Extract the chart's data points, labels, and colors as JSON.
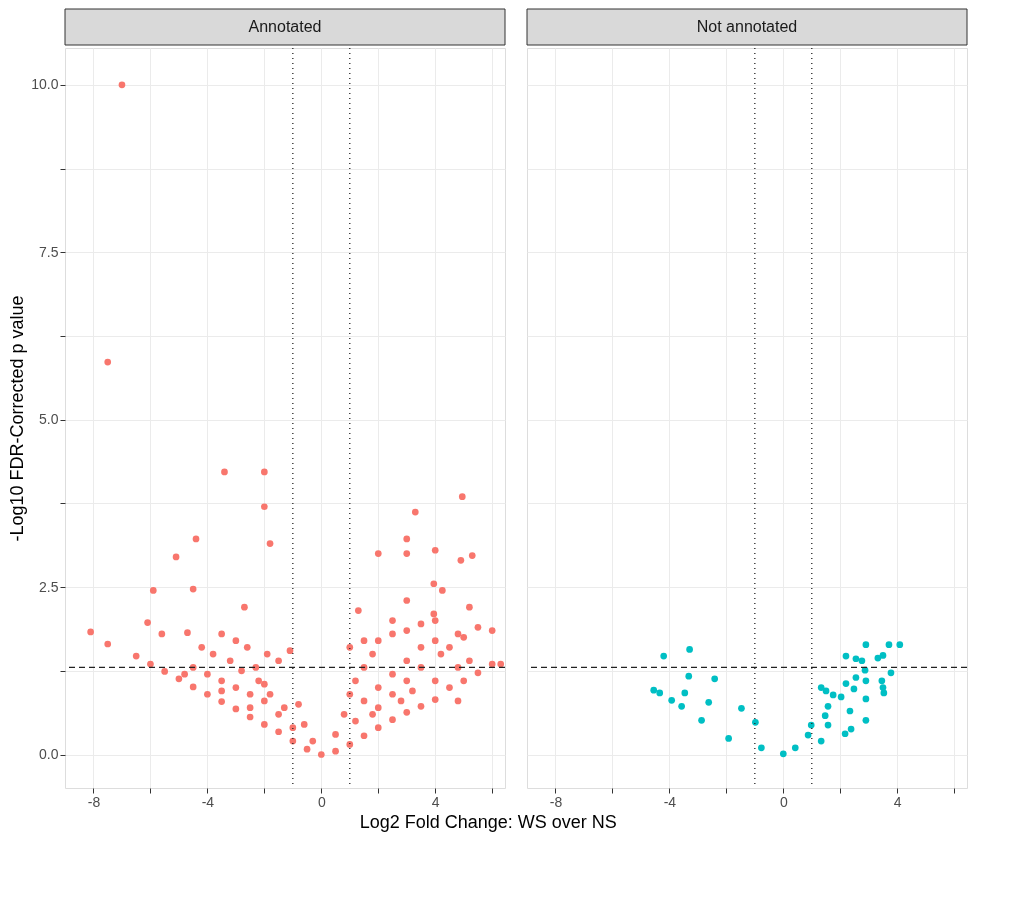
{
  "chart_data": [
    {
      "type": "scatter",
      "title": "Annotated",
      "xlabel": "Log2 Fold Change: WS over NS",
      "ylabel": "-Log10 FDR-Corrected p value",
      "marker": "circle",
      "grid": true,
      "xlim": [
        -9.0,
        6.45
      ],
      "ylim": [
        -0.5,
        10.55
      ],
      "xticks": [
        -8,
        {
          "value": -6,
          "label": null
        },
        -4,
        {
          "value": -2,
          "label": null
        },
        0,
        {
          "value": 2,
          "label": null
        },
        4,
        {
          "value": 6,
          "label": null
        }
      ],
      "yticks": [
        {
          "value": 0,
          "label": "0.0"
        },
        {
          "value": 1.25,
          "label": null
        },
        2.5,
        {
          "value": 3.75,
          "label": null
        },
        {
          "value": 5,
          "label": "5.0"
        },
        {
          "value": 6.25,
          "label": null
        },
        7.5,
        {
          "value": 8.75,
          "label": null
        },
        {
          "value": 10,
          "label": "10.0"
        }
      ],
      "ref_lines": [
        {
          "axis": "y",
          "value": 1.3,
          "line_style": "dashed"
        },
        {
          "axis": "x",
          "value": -1,
          "line_style": "dotted"
        },
        {
          "axis": "x",
          "value": 1,
          "line_style": "dotted"
        }
      ],
      "series": [
        {
          "color": "#f8766d",
          "x": [
            -7.0,
            -7.5,
            -3.4,
            -2.0,
            -2.0,
            -1.8,
            -4.4,
            -5.1,
            -4.5,
            -5.9,
            -2.7,
            4.95,
            3.3,
            3.0,
            3.0,
            4.0,
            2.0,
            5.3,
            4.9,
            3.95,
            4.25,
            3.95,
            -8.1,
            -7.5,
            -6.1,
            -5.6,
            -4.7,
            6.0,
            6.3,
            5.2,
            1.3,
            -6.5,
            -6.0,
            -5.5,
            -5.0,
            -4.5,
            -4.0,
            -3.5,
            -3.0,
            -2.5,
            -2.0,
            -1.5,
            -1.0,
            -0.5,
            0.0,
            -4.5,
            -4.0,
            -3.5,
            -3.0,
            -2.5,
            -2.0,
            -1.5,
            -1.0,
            -3.8,
            -3.2,
            -2.8,
            -2.2,
            -1.8,
            -1.3,
            -3.5,
            -4.2,
            -2.6,
            -1.5,
            -1.1,
            -2.3,
            -4.8,
            -0.8,
            -0.6,
            -0.3,
            -1.9,
            -3.0,
            -2.0,
            -2.5,
            -3.5,
            0.5,
            1.0,
            1.5,
            2.0,
            2.5,
            3.0,
            3.5,
            4.0,
            4.5,
            5.0,
            5.5,
            6.0,
            0.5,
            0.8,
            1.0,
            1.2,
            1.5,
            1.8,
            2.0,
            2.5,
            3.0,
            3.5,
            4.0,
            1.5,
            2.0,
            2.5,
            3.0,
            3.5,
            4.0,
            2.0,
            2.5,
            3.0,
            3.5,
            4.2,
            1.2,
            1.8,
            2.8,
            3.2,
            4.5,
            5.0,
            5.5,
            4.8,
            5.2,
            1.0,
            1.5,
            2.5,
            3.0,
            4.8,
            4.0,
            4.8
          ],
          "values": [
            10.0,
            5.86,
            4.22,
            4.22,
            3.7,
            3.15,
            3.22,
            2.95,
            2.47,
            2.45,
            2.2,
            3.85,
            3.62,
            3.22,
            3.0,
            3.05,
            3.0,
            2.97,
            2.9,
            2.55,
            2.45,
            2.1,
            1.83,
            1.65,
            1.97,
            1.8,
            1.82,
            1.85,
            1.35,
            2.2,
            2.15,
            1.47,
            1.35,
            1.24,
            1.13,
            1.01,
            0.9,
            0.79,
            0.68,
            0.56,
            0.45,
            0.34,
            0.2,
            0.08,
            0.0,
            1.3,
            1.2,
            1.1,
            1.0,
            0.9,
            0.8,
            0.6,
            0.4,
            1.5,
            1.4,
            1.25,
            1.1,
            0.9,
            0.7,
            1.8,
            1.6,
            1.6,
            1.4,
            1.55,
            1.3,
            1.2,
            0.75,
            0.45,
            0.2,
            1.5,
            1.7,
            1.05,
            0.7,
            0.95,
            0.05,
            0.15,
            0.28,
            0.4,
            0.52,
            0.63,
            0.72,
            0.82,
            1.0,
            1.1,
            1.22,
            1.35,
            0.3,
            0.6,
            0.9,
            1.1,
            1.3,
            1.5,
            1.7,
            1.8,
            1.85,
            1.95,
            2.0,
            0.8,
            1.0,
            1.2,
            1.4,
            1.6,
            1.7,
            0.7,
            0.9,
            1.1,
            1.3,
            1.5,
            0.5,
            0.6,
            0.8,
            0.95,
            1.6,
            1.75,
            1.9,
            1.3,
            1.4,
            1.6,
            1.7,
            2.0,
            2.3,
            1.8,
            1.1,
            0.8
          ]
        }
      ]
    },
    {
      "type": "scatter",
      "title": "Not annotated",
      "marker": "circle",
      "grid": true,
      "tick_labels": "x",
      "xlim": [
        -9.0,
        6.45
      ],
      "ylim": [
        -0.5,
        10.55
      ],
      "xticks": [
        -8,
        {
          "value": -6,
          "label": null
        },
        -4,
        {
          "value": -2,
          "label": null
        },
        0,
        {
          "value": 2,
          "label": null
        },
        4,
        {
          "value": 6,
          "label": null
        }
      ],
      "yticks": [
        {
          "value": 0,
          "label": null
        },
        {
          "value": 1.25,
          "label": null
        },
        {
          "value": 2.5,
          "label": null
        },
        {
          "value": 3.75,
          "label": null
        },
        {
          "value": 5,
          "label": null
        },
        {
          "value": 6.25,
          "label": null
        },
        {
          "value": 7.5,
          "label": null
        },
        {
          "value": 8.75,
          "label": null
        },
        {
          "value": 10,
          "label": null
        }
      ],
      "ref_lines": [
        {
          "axis": "y",
          "value": 1.3,
          "line_style": "dashed"
        },
        {
          "axis": "x",
          "value": -1,
          "line_style": "dotted"
        },
        {
          "axis": "x",
          "value": 1,
          "line_style": "dotted"
        }
      ],
      "series": [
        {
          "color": "#00bfc4",
          "x": [
            -4.2,
            -3.29,
            -3.32,
            -2.41,
            -4.55,
            -4.34,
            -3.92,
            -3.46,
            -2.62,
            -1.47,
            -0.98,
            -3.57,
            -2.87,
            -1.92,
            -0.77,
            0.0,
            2.9,
            3.71,
            4.09,
            2.2,
            2.55,
            2.76,
            3.32,
            3.5,
            2.87,
            3.78,
            2.55,
            2.9,
            3.46,
            2.2,
            2.48,
            3.5,
            3.53,
            1.33,
            1.5,
            1.75,
            2.03,
            2.9,
            2.34,
            2.9,
            2.38,
            1.57,
            1.47,
            1.57,
            2.17,
            0.98,
            0.87,
            0.42,
            1.33
          ],
          "values": [
            1.47,
            1.57,
            1.17,
            1.13,
            0.96,
            0.92,
            0.81,
            0.92,
            0.78,
            0.69,
            0.48,
            0.72,
            0.51,
            0.24,
            0.1,
            0.01,
            1.64,
            1.64,
            1.64,
            1.47,
            1.43,
            1.4,
            1.44,
            1.48,
            1.26,
            1.22,
            1.15,
            1.1,
            1.1,
            1.06,
            0.98,
            1.0,
            0.92,
            1.0,
            0.95,
            0.89,
            0.86,
            0.83,
            0.65,
            0.51,
            0.38,
            0.72,
            0.58,
            0.44,
            0.31,
            0.44,
            0.29,
            0.1,
            0.2
          ]
        }
      ]
    }
  ]
}
